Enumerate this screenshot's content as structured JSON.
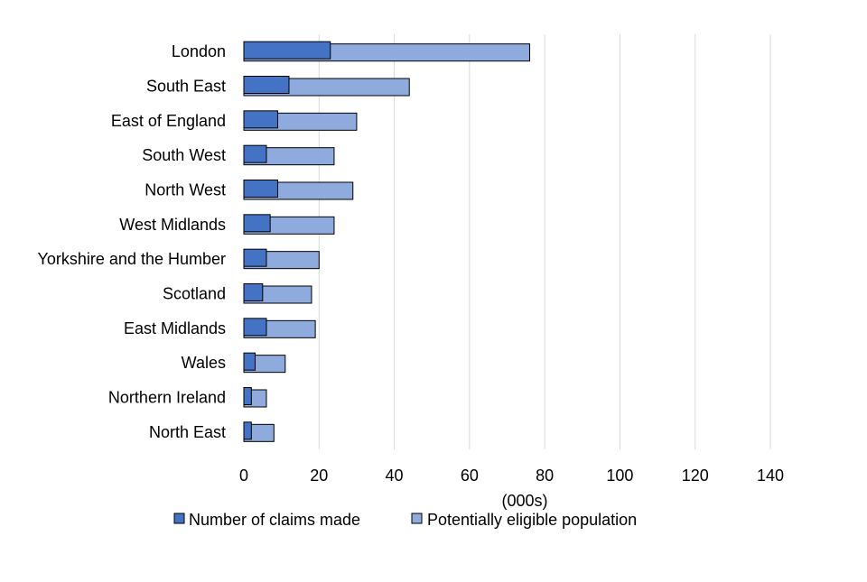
{
  "chart_data": {
    "type": "bar",
    "orientation": "horizontal",
    "title": "",
    "xlabel": "(000s)",
    "ylabel": "",
    "xlim": [
      0,
      140
    ],
    "x_ticks": [
      "0",
      "20",
      "40",
      "60",
      "80",
      "100",
      "120",
      "140"
    ],
    "grid": "vertical gridlines on",
    "legend_position": "bottom",
    "categories": [
      "London",
      "South East",
      "East of England",
      "South West",
      "North West",
      "West Midlands",
      "Yorkshire and the Humber",
      "Scotland",
      "East Midlands",
      "Wales",
      "Northern Ireland",
      "North East"
    ],
    "series": [
      {
        "name": "Number of claims made",
        "color": "#4472C4",
        "values": [
          23,
          12,
          9,
          6,
          9,
          7,
          6,
          5,
          6,
          3,
          2,
          2
        ]
      },
      {
        "name": "Potentially eligible population",
        "color": "#8FAADC",
        "values": [
          76,
          44,
          30,
          24,
          29,
          24,
          20,
          18,
          19,
          11,
          6,
          8
        ]
      }
    ]
  }
}
